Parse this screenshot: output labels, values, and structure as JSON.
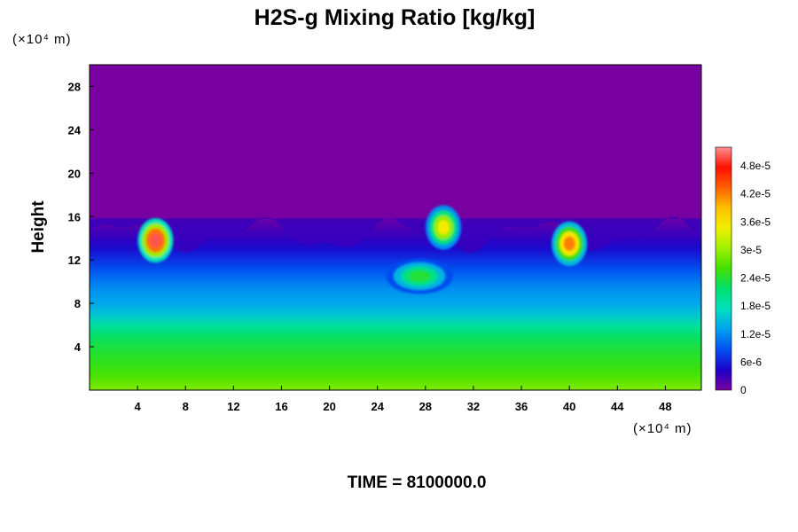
{
  "chart_data": {
    "type": "heatmap",
    "title": "H2S-g Mixing Ratio [kg/kg]",
    "ylabel": "Height",
    "x_unit": "(×10⁴ m)",
    "y_unit": "(×10⁴ m)",
    "xlim": [
      0,
      51
    ],
    "ylim": [
      0,
      30
    ],
    "x_ticks": [
      4,
      8,
      12,
      16,
      20,
      24,
      28,
      32,
      36,
      40,
      44,
      48
    ],
    "x_tick_labels": [
      "4",
      "8",
      "12",
      "16",
      "20",
      "24",
      "28",
      "32",
      "36",
      "40",
      "44",
      "48"
    ],
    "y_ticks": [
      4,
      8,
      12,
      16,
      20,
      24,
      28
    ],
    "y_tick_labels": [
      "4",
      "8",
      "12",
      "16",
      "20",
      "24",
      "28"
    ],
    "colorbar": {
      "range": [
        0,
        5.2e-05
      ],
      "ticks": [
        0,
        6e-06,
        1.2e-05,
        1.8e-05,
        2.4e-05,
        3e-05,
        3.6e-05,
        4.2e-05,
        4.8e-05
      ],
      "tick_labels": [
        "0",
        "6e-6",
        "1.2e-5",
        "1.8e-5",
        "2.4e-5",
        "3e-5",
        "3.6e-5",
        "4.2e-5",
        "4.8e-5"
      ],
      "colors": [
        "#7800a0",
        "#1e00c8",
        "#0050f0",
        "#00a0f0",
        "#00e0c0",
        "#00e070",
        "#40e000",
        "#a0f000",
        "#f0f000",
        "#ffc000",
        "#ff6000",
        "#ff1000",
        "#ff9090"
      ]
    },
    "profile": {
      "heights": [
        0,
        1,
        2,
        3,
        4,
        5,
        6,
        7,
        8,
        9,
        10,
        11,
        12,
        13,
        14,
        15,
        15.9,
        16
      ],
      "values": [
        2.9e-05,
        2.7e-05,
        2.55e-05,
        2.45e-05,
        2.35e-05,
        2.2e-05,
        1.9e-05,
        1.55e-05,
        1.35e-05,
        1.25e-05,
        1.1e-05,
        9e-06,
        7e-06,
        5e-06,
        3.5e-06,
        2e-06,
        5e-07,
        0
      ]
    },
    "features": [
      {
        "label": "plume",
        "x": 5.5,
        "y": 13.8,
        "value": 5e-05
      },
      {
        "label": "plume",
        "x": 29.5,
        "y": 15.0,
        "value": 3.5e-05
      },
      {
        "label": "plume",
        "x": 27.5,
        "y": 10.5,
        "value": 2.4e-05
      },
      {
        "label": "plume",
        "x": 40.0,
        "y": 13.5,
        "value": 4.2e-05
      }
    ]
  },
  "time_label": "TIME = 8100000.0"
}
